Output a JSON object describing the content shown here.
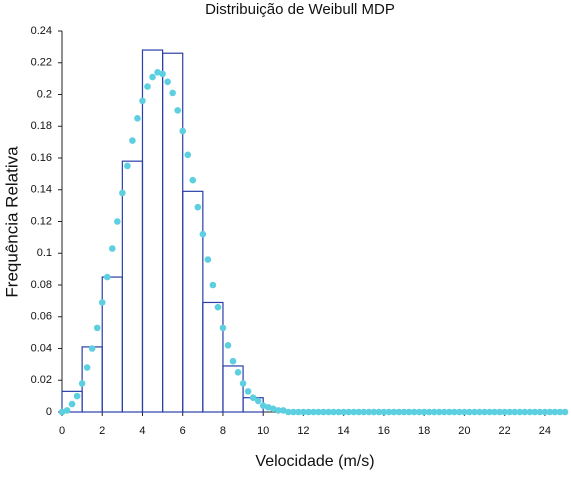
{
  "chart_data": {
    "type": "histogram",
    "title": "Distribuição de Weibull MDP",
    "xlabel": "Velocidade (m/s)",
    "ylabel": "Frequência Relativa",
    "bins": [
      0,
      1,
      2,
      3,
      4,
      5,
      6,
      7,
      8,
      9,
      10
    ],
    "values": [
      0.013,
      0.041,
      0.085,
      0.158,
      0.228,
      0.226,
      0.139,
      0.069,
      0.029,
      0.009
    ],
    "color": "#2b3fa8",
    "overlay": {
      "type": "scatter",
      "color": "#5ccfe0",
      "x": [
        0,
        0.25,
        0.5,
        0.75,
        1,
        1.25,
        1.5,
        1.75,
        2,
        2.25,
        2.5,
        2.75,
        3,
        3.25,
        3.5,
        3.75,
        4,
        4.25,
        4.5,
        4.75,
        5,
        5.25,
        5.5,
        5.75,
        6,
        6.25,
        6.5,
        6.75,
        7,
        7.25,
        7.5,
        7.75,
        8,
        8.25,
        8.5,
        8.75,
        9,
        9.25,
        9.5,
        9.75,
        10,
        10.25,
        10.5,
        10.75,
        11,
        11.25,
        11.5,
        11.75,
        12,
        12.25,
        12.5,
        12.75,
        13,
        13.25,
        13.5,
        13.75,
        14,
        14.25,
        14.5,
        14.75,
        15,
        15.25,
        15.5,
        15.75,
        16,
        16.25,
        16.5,
        16.75,
        17,
        17.25,
        17.5,
        17.75,
        18,
        18.25,
        18.5,
        18.75,
        19,
        19.25,
        19.5,
        19.75,
        20,
        20.25,
        20.5,
        20.75,
        21,
        21.25,
        21.5,
        21.75,
        22,
        22.25,
        22.5,
        22.75,
        23,
        23.25,
        23.5,
        23.75,
        24,
        24.25,
        24.5,
        24.75,
        25
      ],
      "values": [
        0,
        0.001,
        0.005,
        0.01,
        0.018,
        0.028,
        0.04,
        0.053,
        0.069,
        0.085,
        0.103,
        0.12,
        0.138,
        0.155,
        0.171,
        0.185,
        0.196,
        0.205,
        0.211,
        0.214,
        0.213,
        0.208,
        0.201,
        0.19,
        0.177,
        0.162,
        0.146,
        0.129,
        0.112,
        0.096,
        0.08,
        0.066,
        0.053,
        0.042,
        0.032,
        0.025,
        0.018,
        0.013,
        0.009,
        0.007,
        0.004,
        0.003,
        0.002,
        0.001,
        0.001,
        0,
        0,
        0,
        0,
        0,
        0,
        0,
        0,
        0,
        0,
        0,
        0,
        0,
        0,
        0,
        0,
        0,
        0,
        0,
        0,
        0,
        0,
        0,
        0,
        0,
        0,
        0,
        0,
        0,
        0,
        0,
        0,
        0,
        0,
        0,
        0,
        0,
        0,
        0,
        0,
        0,
        0,
        0,
        0,
        0,
        0,
        0,
        0,
        0,
        0,
        0,
        0,
        0,
        0,
        0,
        0
      ]
    },
    "xlim": [
      0,
      25
    ],
    "ylim": [
      0,
      0.24
    ],
    "xticks": [
      0,
      2,
      4,
      6,
      8,
      10,
      12,
      14,
      16,
      18,
      20,
      22,
      24
    ],
    "yticks": [
      0,
      0.02,
      0.04,
      0.06,
      0.08,
      0.1,
      0.12,
      0.14,
      0.16,
      0.18,
      0.2,
      0.22,
      0.24
    ]
  }
}
